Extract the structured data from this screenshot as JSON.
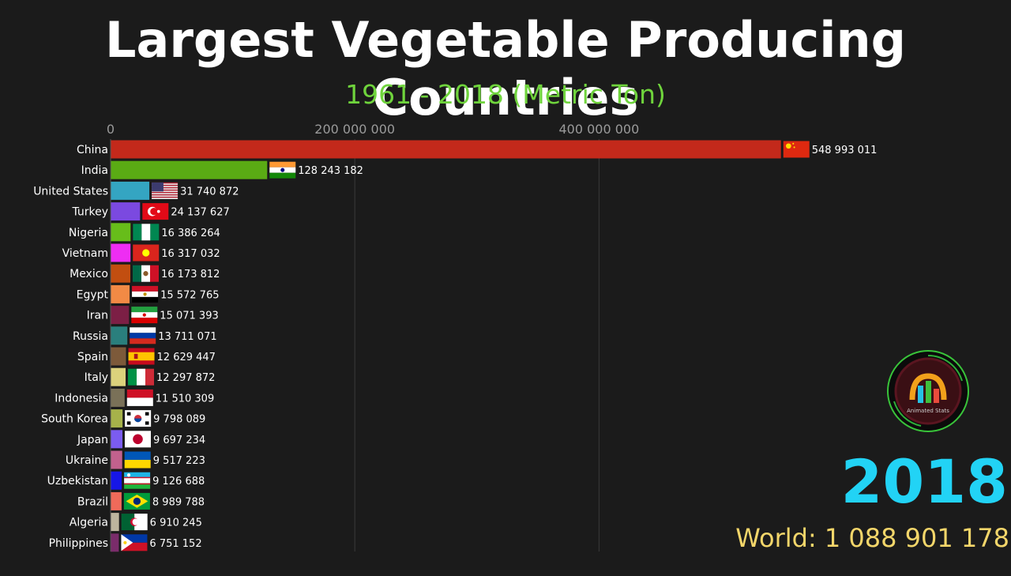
{
  "title": "Largest Vegetable Producing Countries",
  "subtitle": "1961 - 2018 (Metric Ton)",
  "year": "2018",
  "world_total": "World: 1 088 901 178",
  "logo_text": "Animated Stats",
  "chart_data": {
    "type": "bar",
    "orientation": "horizontal",
    "title": "Largest Vegetable Producing Countries",
    "subtitle": "1961 - 2018 (Metric Ton)",
    "xlim": [
      0,
      570000000
    ],
    "x_ticks": [
      0,
      200000000,
      400000000
    ],
    "x_tick_labels": [
      "0",
      "200 000 000",
      "400 000 000"
    ],
    "grid": true,
    "categories": [
      "China",
      "India",
      "United States",
      "Turkey",
      "Nigeria",
      "Vietnam",
      "Mexico",
      "Egypt",
      "Iran",
      "Russia",
      "Spain",
      "Italy",
      "Indonesia",
      "South Korea",
      "Japan",
      "Ukraine",
      "Uzbekistan",
      "Brazil",
      "Algeria",
      "Philippines"
    ],
    "values": [
      548993011,
      128243182,
      31740872,
      24137627,
      16386264,
      16317032,
      16173812,
      15572765,
      15071393,
      13711071,
      12629447,
      12297872,
      11510309,
      9798089,
      9697234,
      9517223,
      9126688,
      8989788,
      6910245,
      6751152
    ],
    "value_labels": [
      "548 993 011",
      "128 243 182",
      "31 740 872",
      "24 137 627",
      "16 386 264",
      "16 317 032",
      "16 173 812",
      "15 572 765",
      "15 071 393",
      "13 711 071",
      "12 629 447",
      "12 297 872",
      "11 510 309",
      "9 798 089",
      "9 697 234",
      "9 517 223",
      "9 126 688",
      "8 989 788",
      "6 910 245",
      "6 751 152"
    ],
    "colors": [
      "#c3291b",
      "#5aab14",
      "#34a5c2",
      "#7b49e0",
      "#67bd1a",
      "#ee2df3",
      "#c24e10",
      "#f28a45",
      "#7c1f45",
      "#2a7f7d",
      "#7d5a3a",
      "#dcd27c",
      "#7a7158",
      "#a6b24a",
      "#7b5cf0",
      "#c2618d",
      "#1616e6",
      "#f06a5a",
      "#bdb59e",
      "#7a2c6a"
    ],
    "flags": [
      "china",
      "india",
      "usa",
      "turkey",
      "nigeria",
      "vietnam",
      "mexico",
      "egypt",
      "iran",
      "russia",
      "spain",
      "italy",
      "indonesia",
      "south-korea",
      "japan",
      "ukraine",
      "uzbekistan",
      "brazil",
      "algeria",
      "philippines"
    ]
  }
}
